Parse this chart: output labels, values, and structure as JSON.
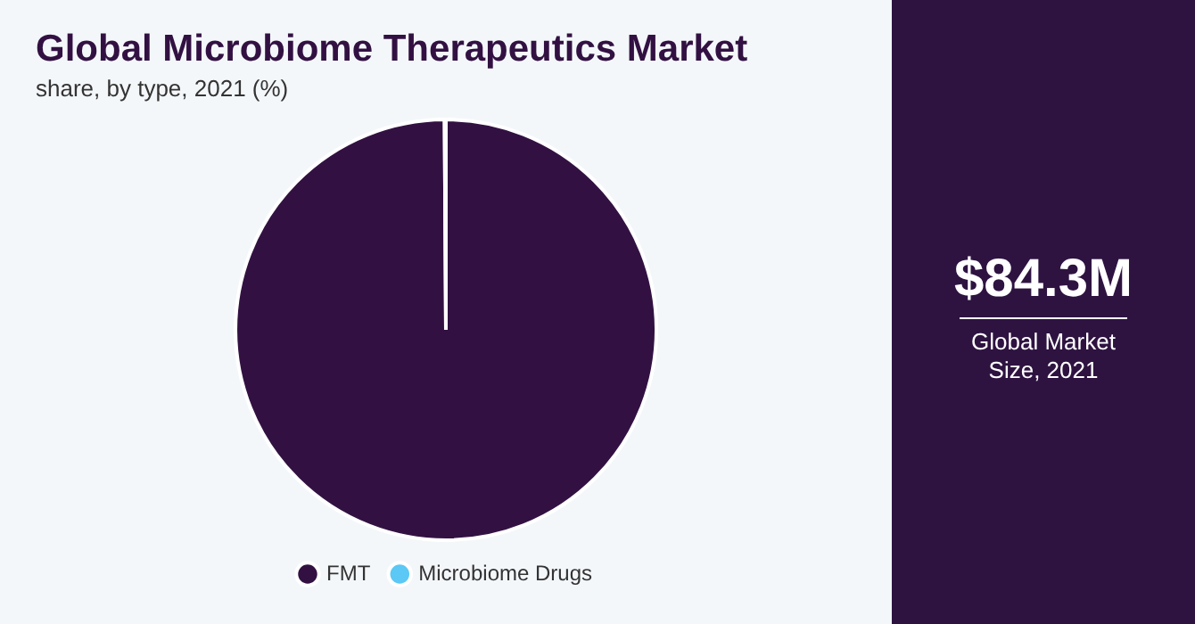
{
  "chart_data": [
    {
      "type": "pie",
      "title": "Global Microbiome Therapeutics Market",
      "subtitle": "share, by type, 2021 (%)",
      "categories": [
        "FMT",
        "Microbiome Drugs"
      ],
      "values": [
        99.9,
        0.1
      ],
      "colors": [
        "#321142",
        "#5bc8f5"
      ],
      "legend": "bottom"
    },
    {
      "type": "other",
      "title": "$84.3M",
      "subtitle": "Global Market Size, 2021"
    }
  ]
}
